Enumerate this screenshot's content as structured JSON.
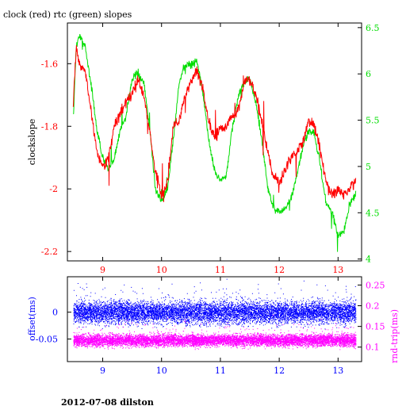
{
  "title": "clock (red) rtc (green) slopes",
  "footer": "2012-07-08 dilston",
  "colors": {
    "clock": "#ff0000",
    "rtc": "#00dd00",
    "offset": "#0000ff",
    "rndtrip": "#ff00ff",
    "axis": "#000000"
  },
  "chart_data": [
    {
      "type": "line",
      "xlim": [
        8.4,
        13.4
      ],
      "x_ticks": [
        "9",
        "10",
        "11",
        "12",
        "13"
      ],
      "ylabel": "clockslope",
      "ylim": [
        -2.23,
        -1.47
      ],
      "y_ticks": [
        "-1.6",
        "-1.8",
        "-2",
        "-2.2"
      ],
      "y2lim": [
        3.98,
        6.55
      ],
      "y2_ticks": [
        "6.5",
        "6",
        "5.5",
        "5",
        "4.5",
        "4"
      ],
      "series": [
        {
          "name": "clock",
          "axis": "left",
          "x": [
            8.5,
            8.55,
            8.6,
            8.7,
            8.8,
            8.9,
            9.0,
            9.1,
            9.2,
            9.3,
            9.4,
            9.5,
            9.6,
            9.7,
            9.8,
            9.9,
            10.0,
            10.1,
            10.2,
            10.3,
            10.4,
            10.5,
            10.6,
            10.7,
            10.8,
            10.9,
            11.0,
            11.1,
            11.2,
            11.3,
            11.4,
            11.5,
            11.6,
            11.7,
            11.8,
            11.9,
            12.0,
            12.1,
            12.2,
            12.3,
            12.4,
            12.5,
            12.6,
            12.7,
            12.8,
            12.9,
            13.0,
            13.1,
            13.2,
            13.3
          ],
          "values": [
            -1.72,
            -1.55,
            -1.6,
            -1.62,
            -1.75,
            -1.88,
            -1.93,
            -1.9,
            -1.8,
            -1.76,
            -1.72,
            -1.7,
            -1.65,
            -1.7,
            -1.82,
            -1.95,
            -2.02,
            -1.98,
            -1.8,
            -1.78,
            -1.7,
            -1.66,
            -1.62,
            -1.68,
            -1.78,
            -1.84,
            -1.8,
            -1.8,
            -1.77,
            -1.75,
            -1.66,
            -1.65,
            -1.7,
            -1.78,
            -1.88,
            -1.96,
            -1.98,
            -1.94,
            -1.9,
            -1.88,
            -1.85,
            -1.78,
            -1.8,
            -1.88,
            -1.98,
            -2.02,
            -2.0,
            -2.02,
            -2.0,
            -1.97
          ]
        },
        {
          "name": "rtc",
          "axis": "right",
          "x": [
            8.5,
            8.55,
            8.6,
            8.7,
            8.8,
            8.9,
            9.0,
            9.1,
            9.2,
            9.3,
            9.4,
            9.5,
            9.6,
            9.7,
            9.8,
            9.9,
            10.0,
            10.1,
            10.2,
            10.3,
            10.4,
            10.5,
            10.6,
            10.7,
            10.8,
            10.9,
            11.0,
            11.1,
            11.2,
            11.3,
            11.4,
            11.5,
            11.6,
            11.7,
            11.8,
            11.9,
            12.0,
            12.1,
            12.2,
            12.3,
            12.4,
            12.5,
            12.6,
            12.7,
            12.8,
            12.9,
            13.0,
            13.1,
            13.2,
            13.3
          ],
          "values": [
            5.5,
            6.3,
            6.42,
            6.3,
            5.9,
            5.4,
            5.1,
            4.95,
            5.1,
            5.4,
            5.55,
            5.95,
            6.0,
            5.9,
            5.4,
            4.75,
            4.62,
            4.75,
            5.3,
            5.9,
            6.1,
            6.1,
            6.15,
            5.8,
            5.3,
            4.95,
            4.85,
            4.9,
            5.4,
            5.75,
            5.9,
            5.95,
            5.7,
            5.3,
            4.8,
            4.55,
            4.5,
            4.55,
            4.65,
            4.9,
            5.2,
            5.4,
            5.35,
            5.0,
            4.6,
            4.5,
            4.25,
            4.3,
            4.6,
            4.7
          ]
        }
      ]
    },
    {
      "type": "scatter",
      "xlim": [
        8.4,
        13.4
      ],
      "x_ticks": [
        "9",
        "10",
        "11",
        "12",
        "13"
      ],
      "ylabel": "offset(ms)",
      "ylim": [
        -0.092,
        0.066
      ],
      "y_ticks": [
        "0",
        "-0.05"
      ],
      "y2label": "rnd-trip(ms)",
      "y2lim": [
        0.065,
        0.27
      ],
      "y2_ticks": [
        "0.25",
        "0.2",
        "0.15",
        "0.1"
      ],
      "series": [
        {
          "name": "offset",
          "axis": "left",
          "x_range": [
            8.5,
            13.3
          ],
          "center": 0.0,
          "spread": 0.014
        },
        {
          "name": "rnd-trip",
          "axis": "right",
          "x_range": [
            8.5,
            13.3
          ],
          "center": 0.117,
          "spread": 0.01
        }
      ]
    }
  ]
}
